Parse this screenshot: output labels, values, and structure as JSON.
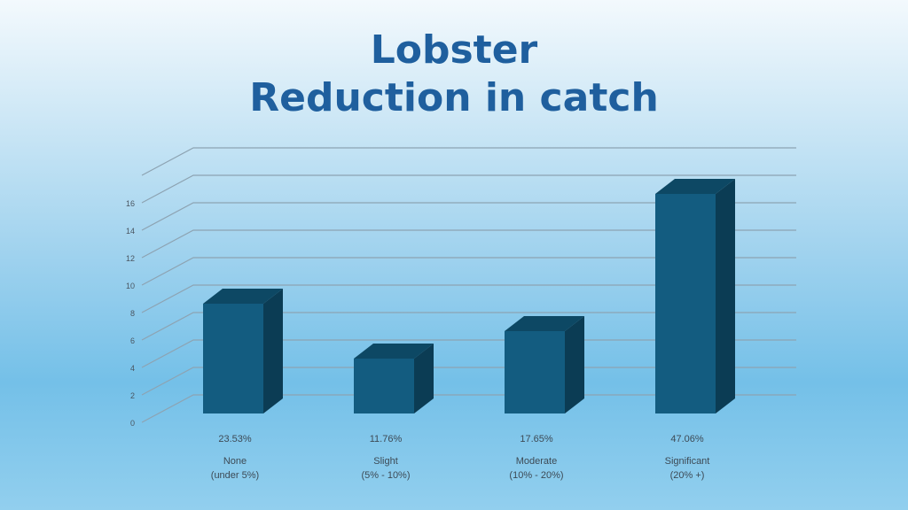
{
  "slide": {
    "title_line1": "Lobster",
    "title_line2": "Reduction in catch"
  },
  "chart_data": {
    "type": "bar",
    "categories": [
      "None",
      "Slight",
      "Moderate",
      "Significant"
    ],
    "category_sublabels": [
      "(under 5%)",
      "(5% - 10%)",
      "(10% - 20%)",
      "(20% +)"
    ],
    "values": [
      8,
      4,
      6,
      16
    ],
    "percent_labels": [
      "23.53%",
      "11.76%",
      "17.65%",
      "47.06%"
    ],
    "yticks": [
      0,
      2,
      4,
      6,
      8,
      10,
      12,
      14,
      16
    ],
    "ylim": [
      0,
      18
    ],
    "grid": true,
    "style": "3d-column",
    "colors": {
      "bar_front": "#135c80",
      "bar_top": "#0d4864",
      "bar_side": "#0b3c54",
      "grid": "#8da3b2",
      "title": "#1f5f9e"
    }
  }
}
